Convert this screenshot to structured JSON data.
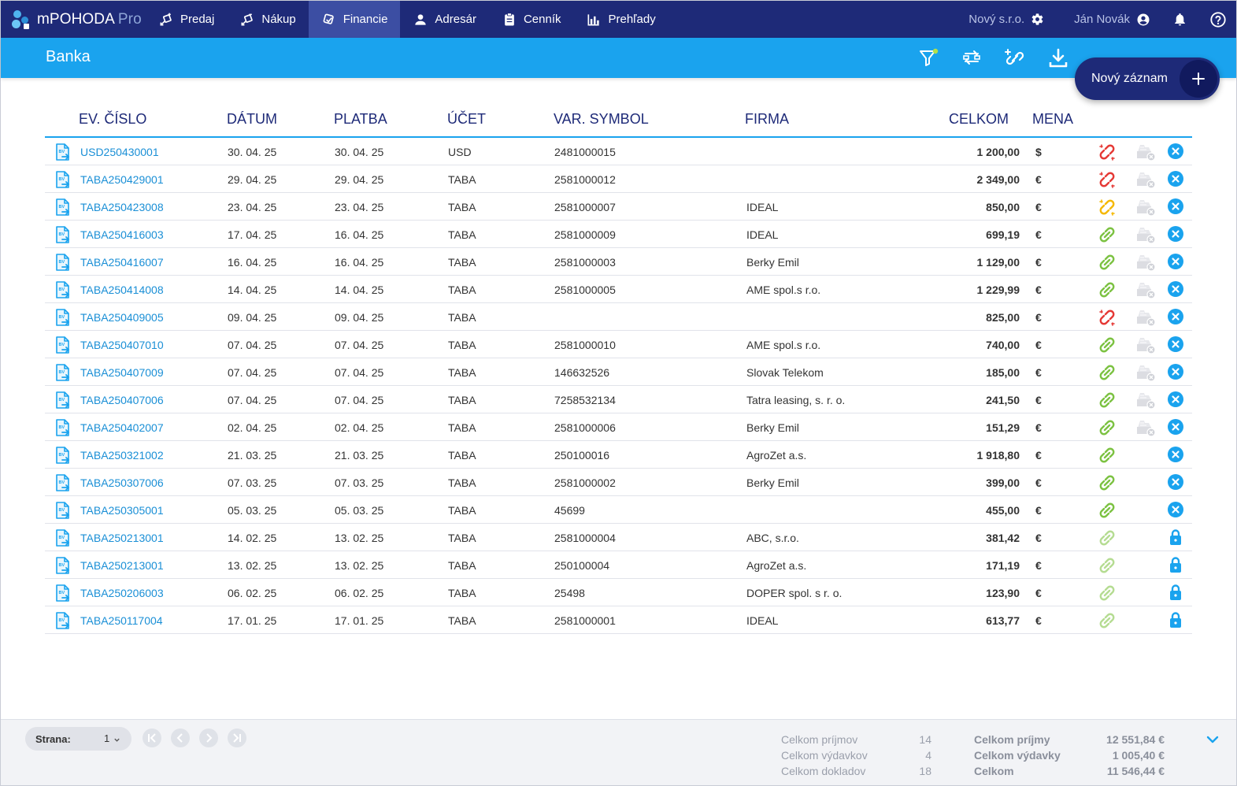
{
  "app": {
    "name": "mPOHODA",
    "edition": "Pro"
  },
  "nav": [
    {
      "label": "Predaj",
      "icon": "sales-icon"
    },
    {
      "label": "Nákup",
      "icon": "purchase-icon"
    },
    {
      "label": "Financie",
      "icon": "finance-icon",
      "active": true
    },
    {
      "label": "Adresár",
      "icon": "person-icon"
    },
    {
      "label": "Cenník",
      "icon": "clipboard-icon"
    },
    {
      "label": "Prehľady",
      "icon": "bar-chart-icon"
    }
  ],
  "topright": {
    "company": "Nový s.r.o.",
    "user": "Ján Novák"
  },
  "page": {
    "title": "Banka",
    "new_record": "Nový záznam"
  },
  "columns": [
    "EV. ČÍSLO",
    "DÁTUM",
    "PLATBA",
    "ÚČET",
    "VAR. SYMBOL",
    "FIRMA",
    "CELKOM",
    "MENA"
  ],
  "rows": [
    {
      "ev": "USD250430001",
      "datum": "30. 04. 25",
      "platba": "30. 04. 25",
      "ucet": "USD",
      "var": "2481000015",
      "firma": "",
      "celkom": "1 200,00",
      "mena": "$",
      "link": "red",
      "status": "delete",
      "pending": true
    },
    {
      "ev": "TABA250429001",
      "datum": "29. 04. 25",
      "platba": "29. 04. 25",
      "ucet": "TABA",
      "var": "2581000012",
      "firma": "",
      "celkom": "2 349,00",
      "mena": "€",
      "link": "red",
      "status": "delete",
      "pending": true
    },
    {
      "ev": "TABA250423008",
      "datum": "23. 04. 25",
      "platba": "23. 04. 25",
      "ucet": "TABA",
      "var": "2581000007",
      "firma": "IDEAL",
      "celkom": "850,00",
      "mena": "€",
      "link": "orange",
      "status": "delete",
      "pending": true
    },
    {
      "ev": "TABA250416003",
      "datum": "17. 04. 25",
      "platba": "16. 04. 25",
      "ucet": "TABA",
      "var": "2581000009",
      "firma": "IDEAL",
      "celkom": "699,19",
      "mena": "€",
      "link": "green",
      "status": "delete",
      "pending": true
    },
    {
      "ev": "TABA250416007",
      "datum": "16. 04. 25",
      "platba": "16. 04. 25",
      "ucet": "TABA",
      "var": "2581000003",
      "firma": "Berky Emil",
      "celkom": "1 129,00",
      "mena": "€",
      "link": "green",
      "status": "delete",
      "pending": true
    },
    {
      "ev": "TABA250414008",
      "datum": "14. 04. 25",
      "platba": "14. 04. 25",
      "ucet": "TABA",
      "var": "2581000005",
      "firma": "AME spol.s r.o.",
      "celkom": "1 229,99",
      "mena": "€",
      "link": "green",
      "status": "delete",
      "pending": true
    },
    {
      "ev": "TABA250409005",
      "datum": "09. 04. 25",
      "platba": "09. 04. 25",
      "ucet": "TABA",
      "var": "",
      "firma": "",
      "celkom": "825,00",
      "mena": "€",
      "link": "red",
      "status": "delete",
      "pending": true
    },
    {
      "ev": "TABA250407010",
      "datum": "07. 04. 25",
      "platba": "07. 04. 25",
      "ucet": "TABA",
      "var": "2581000010",
      "firma": "AME spol.s r.o.",
      "celkom": "740,00",
      "mena": "€",
      "link": "green",
      "status": "delete",
      "pending": true
    },
    {
      "ev": "TABA250407009",
      "datum": "07. 04. 25",
      "platba": "07. 04. 25",
      "ucet": "TABA",
      "var": "146632526",
      "firma": "Slovak Telekom",
      "celkom": "185,00",
      "mena": "€",
      "link": "green",
      "status": "delete",
      "pending": true
    },
    {
      "ev": "TABA250407006",
      "datum": "07. 04. 25",
      "platba": "07. 04. 25",
      "ucet": "TABA",
      "var": "7258532134",
      "firma": "Tatra leasing, s. r. o.",
      "celkom": "241,50",
      "mena": "€",
      "link": "green",
      "status": "delete",
      "pending": true
    },
    {
      "ev": "TABA250402007",
      "datum": "02. 04. 25",
      "platba": "02. 04. 25",
      "ucet": "TABA",
      "var": "2581000006",
      "firma": "Berky Emil",
      "celkom": "151,29",
      "mena": "€",
      "link": "green",
      "status": "delete",
      "pending": true
    },
    {
      "ev": "TABA250321002",
      "datum": "21. 03. 25",
      "platba": "21. 03. 25",
      "ucet": "TABA",
      "var": "250100016",
      "firma": "AgroZet a.s.",
      "celkom": "1 918,80",
      "mena": "€",
      "link": "green",
      "status": "delete",
      "pending": false
    },
    {
      "ev": "TABA250307006",
      "datum": "07. 03. 25",
      "platba": "07. 03. 25",
      "ucet": "TABA",
      "var": "2581000002",
      "firma": "Berky Emil",
      "celkom": "399,00",
      "mena": "€",
      "link": "green",
      "status": "delete",
      "pending": false
    },
    {
      "ev": "TABA250305001",
      "datum": "05. 03. 25",
      "platba": "05. 03. 25",
      "ucet": "TABA",
      "var": "45699",
      "firma": "",
      "celkom": "455,00",
      "mena": "€",
      "link": "green",
      "status": "delete",
      "pending": false
    },
    {
      "ev": "TABA250213001",
      "datum": "14. 02. 25",
      "platba": "13. 02. 25",
      "ucet": "TABA",
      "var": "2581000004",
      "firma": "ABC, s.r.o.",
      "celkom": "381,42",
      "mena": "€",
      "link": "lightgreen",
      "status": "locked",
      "pending": false
    },
    {
      "ev": "TABA250213001",
      "datum": "13. 02. 25",
      "platba": "13. 02. 25",
      "ucet": "TABA",
      "var": "250100004",
      "firma": "AgroZet a.s.",
      "celkom": "171,19",
      "mena": "€",
      "link": "lightgreen",
      "status": "locked",
      "pending": false
    },
    {
      "ev": "TABA250206003",
      "datum": "06. 02. 25",
      "platba": "06. 02. 25",
      "ucet": "TABA",
      "var": "25498",
      "firma": "DOPER spol. s r. o.",
      "celkom": "123,90",
      "mena": "€",
      "link": "lightgreen",
      "status": "locked",
      "pending": false
    },
    {
      "ev": "TABA250117004",
      "datum": "17. 01. 25",
      "platba": "17. 01. 25",
      "ucet": "TABA",
      "var": "2581000001",
      "firma": "IDEAL",
      "celkom": "613,77",
      "mena": "€",
      "link": "lightgreen",
      "status": "locked",
      "pending": false
    }
  ],
  "footer": {
    "page_label": "Strana:",
    "page_value": "1",
    "counts": [
      {
        "label": "Celkom príjmov",
        "value": "14"
      },
      {
        "label": "Celkom výdavkov",
        "value": "4"
      },
      {
        "label": "Celkom dokladov",
        "value": "18"
      }
    ],
    "totals": [
      {
        "label": "Celkom príjmy",
        "value": "12 551,84 €"
      },
      {
        "label": "Celkom výdavky",
        "value": "1 005,40 €"
      },
      {
        "label": "Celkom",
        "value": "11 546,44 €"
      }
    ]
  },
  "colors": {
    "navy": "#1e2a78",
    "blue": "#1aa3ee",
    "link_red": "#e53935",
    "link_orange": "#f5b800",
    "link_green": "#7cc242",
    "link_lightgreen": "#b5dc92"
  }
}
